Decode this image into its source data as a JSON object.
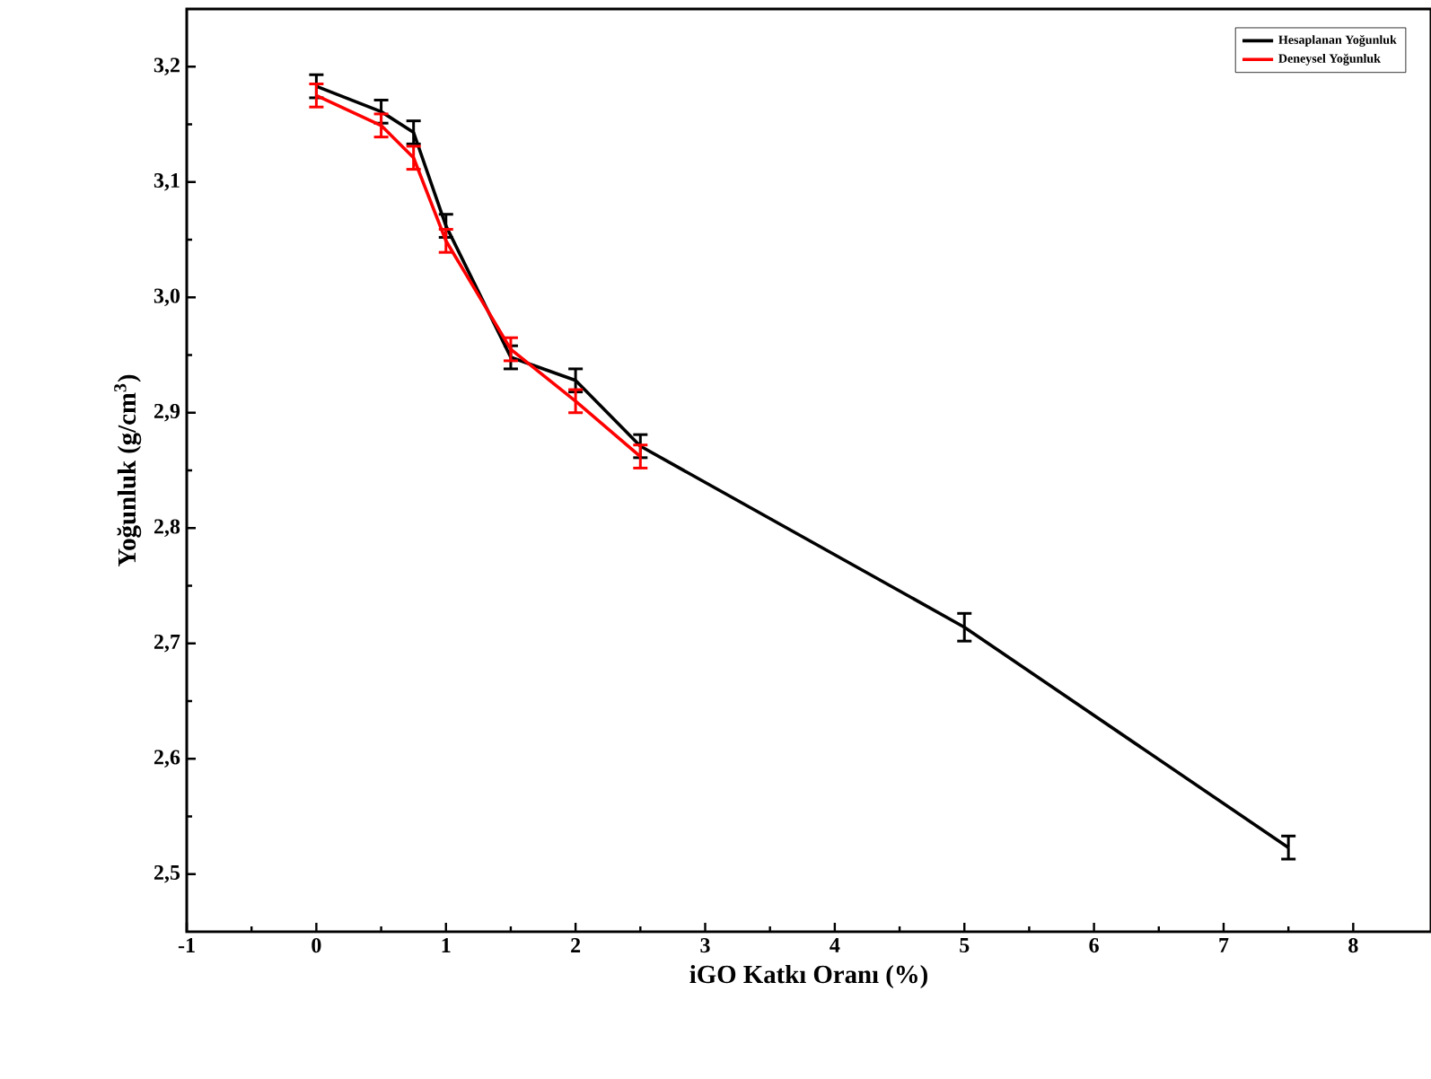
{
  "chart_data": {
    "type": "line",
    "xlabel": "iGO Katkı Oranı (%)",
    "ylabel": "Yoğunluk (g/cm$^{3}$)",
    "xlim": [
      -1,
      8.6
    ],
    "ylim": [
      2.45,
      3.25
    ],
    "xticks": [
      -1,
      0,
      1,
      2,
      3,
      4,
      5,
      6,
      7,
      8
    ],
    "yticks": [
      {
        "value": 2.5,
        "label": "2,5"
      },
      {
        "value": 2.6,
        "label": "2,6"
      },
      {
        "value": 2.7,
        "label": "2,7"
      },
      {
        "value": 2.8,
        "label": "2,8"
      },
      {
        "value": 2.9,
        "label": "2,9"
      },
      {
        "value": 3.0,
        "label": "3,0"
      },
      {
        "value": 3.1,
        "label": "3,1"
      },
      {
        "value": 3.2,
        "label": "3,2"
      }
    ],
    "legend": "top right",
    "marker": "none",
    "line_style": "solid",
    "grid": false,
    "series": [
      {
        "name": "Hesaplanan Yoğunluk",
        "color": "#000000",
        "x": [
          0,
          0.5,
          0.75,
          1,
          1.5,
          2,
          2.5,
          5,
          7.5
        ],
        "values": [
          3.183,
          3.161,
          3.143,
          3.062,
          2.948,
          2.928,
          2.871,
          2.714,
          2.523
        ],
        "errors": [
          0.01,
          0.01,
          0.01,
          0.01,
          0.01,
          0.01,
          0.01,
          0.012,
          0.01
        ]
      },
      {
        "name": "Deneysel Yoğunluk",
        "color": "#ff0000",
        "x": [
          0,
          0.5,
          0.75,
          1,
          1.5,
          2,
          2.5
        ],
        "values": [
          3.175,
          3.149,
          3.121,
          3.049,
          2.955,
          2.91,
          2.862
        ],
        "errors": [
          0.01,
          0.01,
          0.01,
          0.01,
          0.01,
          0.01,
          0.01
        ]
      }
    ]
  }
}
